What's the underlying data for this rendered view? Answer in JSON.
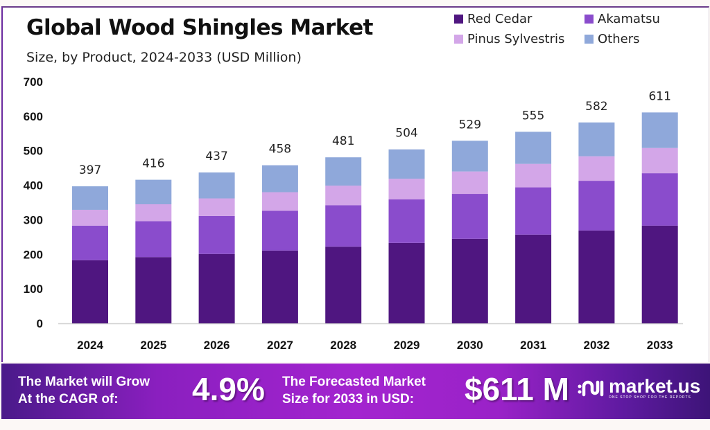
{
  "header": {
    "title": "Global Wood Shingles Market",
    "subtitle": "Size, by Product, 2024-2033 (USD Million)"
  },
  "legend": [
    {
      "label": "Red Cedar",
      "color": "#4f1680"
    },
    {
      "label": "Akamatsu",
      "color": "#8a4ccc"
    },
    {
      "label": "Pinus Sylvestris",
      "color": "#d3a6e8"
    },
    {
      "label": "Others",
      "color": "#8fa8da"
    }
  ],
  "chart_data": {
    "type": "bar",
    "stacked": true,
    "title": "Global Wood Shingles Market",
    "subtitle": "Size, by Product, 2024-2033 (USD Million)",
    "xlabel": "",
    "ylabel": "",
    "ylim": [
      0,
      700
    ],
    "yticks": [
      0,
      100,
      200,
      300,
      400,
      500,
      600,
      700
    ],
    "grid": false,
    "legend_position": "top-right",
    "categories": [
      "2024",
      "2025",
      "2026",
      "2027",
      "2028",
      "2029",
      "2030",
      "2031",
      "2032",
      "2033"
    ],
    "totals": [
      397,
      416,
      437,
      458,
      481,
      504,
      529,
      555,
      582,
      611
    ],
    "series": [
      {
        "name": "Red Cedar",
        "color": "#4f1680",
        "values": [
          183,
          192,
          201,
          211,
          222,
          233,
          245,
          257,
          269,
          283
        ]
      },
      {
        "name": "Akamatsu",
        "color": "#8a4ccc",
        "values": [
          100,
          104,
          110,
          115,
          120,
          126,
          130,
          137,
          144,
          152
        ]
      },
      {
        "name": "Pinus Sylvestris",
        "color": "#d3a6e8",
        "values": [
          46,
          49,
          51,
          54,
          57,
          60,
          65,
          68,
          71,
          73
        ]
      },
      {
        "name": "Others",
        "color": "#8fa8da",
        "values": [
          68,
          71,
          75,
          78,
          82,
          85,
          89,
          93,
          98,
          103
        ]
      }
    ]
  },
  "banner": {
    "cagr_label_line1": "The Market will Grow",
    "cagr_label_line2": "At the CAGR of:",
    "cagr_value": "4.9%",
    "size_label_line1": "The Forecasted Market",
    "size_label_line2": "Size for 2033 in USD:",
    "size_value": "$611 M",
    "logo_text": "market.us",
    "logo_tagline": "ONE STOP SHOP FOR THE REPORTS"
  }
}
